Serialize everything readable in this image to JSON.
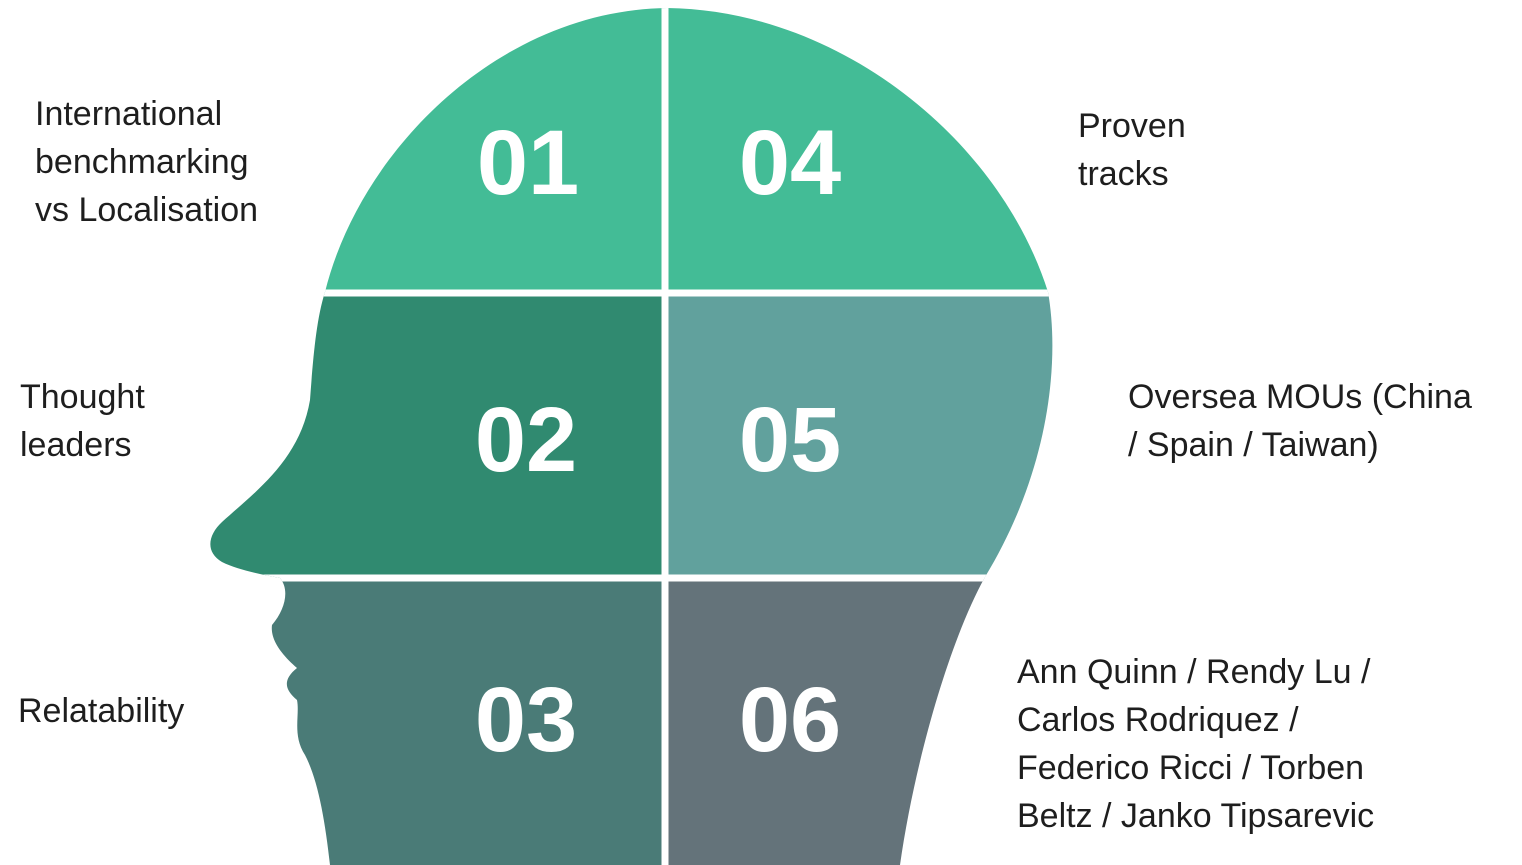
{
  "segments": [
    {
      "number": "01",
      "text": [
        "International",
        "benchmarking",
        "vs Localisation"
      ]
    },
    {
      "number": "02",
      "text": [
        "Thought",
        "leaders"
      ]
    },
    {
      "number": "03",
      "text": [
        "Relatability"
      ]
    },
    {
      "number": "04",
      "text": [
        "Proven",
        "tracks"
      ]
    },
    {
      "number": "05",
      "text": [
        "Oversea MOUs (China",
        "/ Spain / Taiwan)"
      ]
    },
    {
      "number": "06",
      "text": [
        "Ann Quinn / Rendy Lu /",
        "Carlos Rodriquez /",
        "Federico Ricci / Torben",
        "Beltz / Janko Tipsarevic"
      ]
    }
  ]
}
